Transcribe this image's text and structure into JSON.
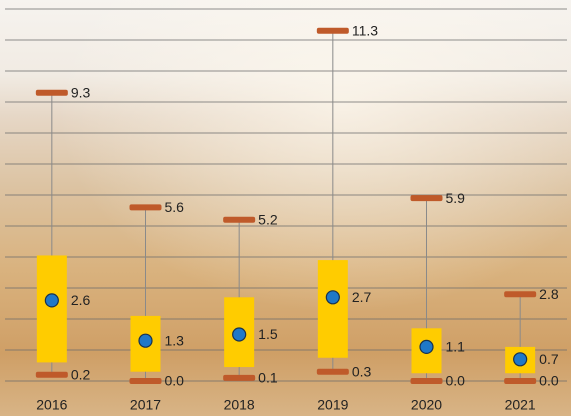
{
  "chart_data": {
    "type": "box",
    "categories": [
      "2016",
      "2017",
      "2018",
      "2019",
      "2020",
      "2021"
    ],
    "min": [
      0.2,
      0,
      0.1,
      0.3,
      0,
      0
    ],
    "min_labels": [
      "0.2",
      "0.0",
      "0.1",
      "0.3",
      "0.0",
      "0.0"
    ],
    "q1": [
      0.6,
      0.3,
      0.45,
      0.75,
      0.25,
      0.25
    ],
    "q3": [
      4.05,
      2.1,
      2.7,
      3.9,
      1.7,
      1.1
    ],
    "max": [
      9.3,
      5.6,
      5.2,
      11.3,
      5.9,
      2.8
    ],
    "max_labels": [
      "9.3",
      "5.6",
      "5.2",
      "11.3",
      "5.9",
      "2.8"
    ],
    "mean": [
      2.6,
      1.3,
      1.5,
      2.7,
      1.1,
      0.7
    ],
    "mean_labels": [
      "2.6",
      "1.3",
      "1.5",
      "2.7",
      "1.1",
      "0.7"
    ],
    "box_color": "#ffcc00",
    "marker_color": "#bf5a2a",
    "mean_color": "#1f78c8",
    "whisker_color": "#8a8a8a",
    "ylim": [
      0,
      12
    ],
    "yticks": [
      0,
      1,
      2,
      3,
      4,
      5,
      6,
      7,
      8,
      9,
      10,
      11,
      12
    ],
    "grid": true
  }
}
